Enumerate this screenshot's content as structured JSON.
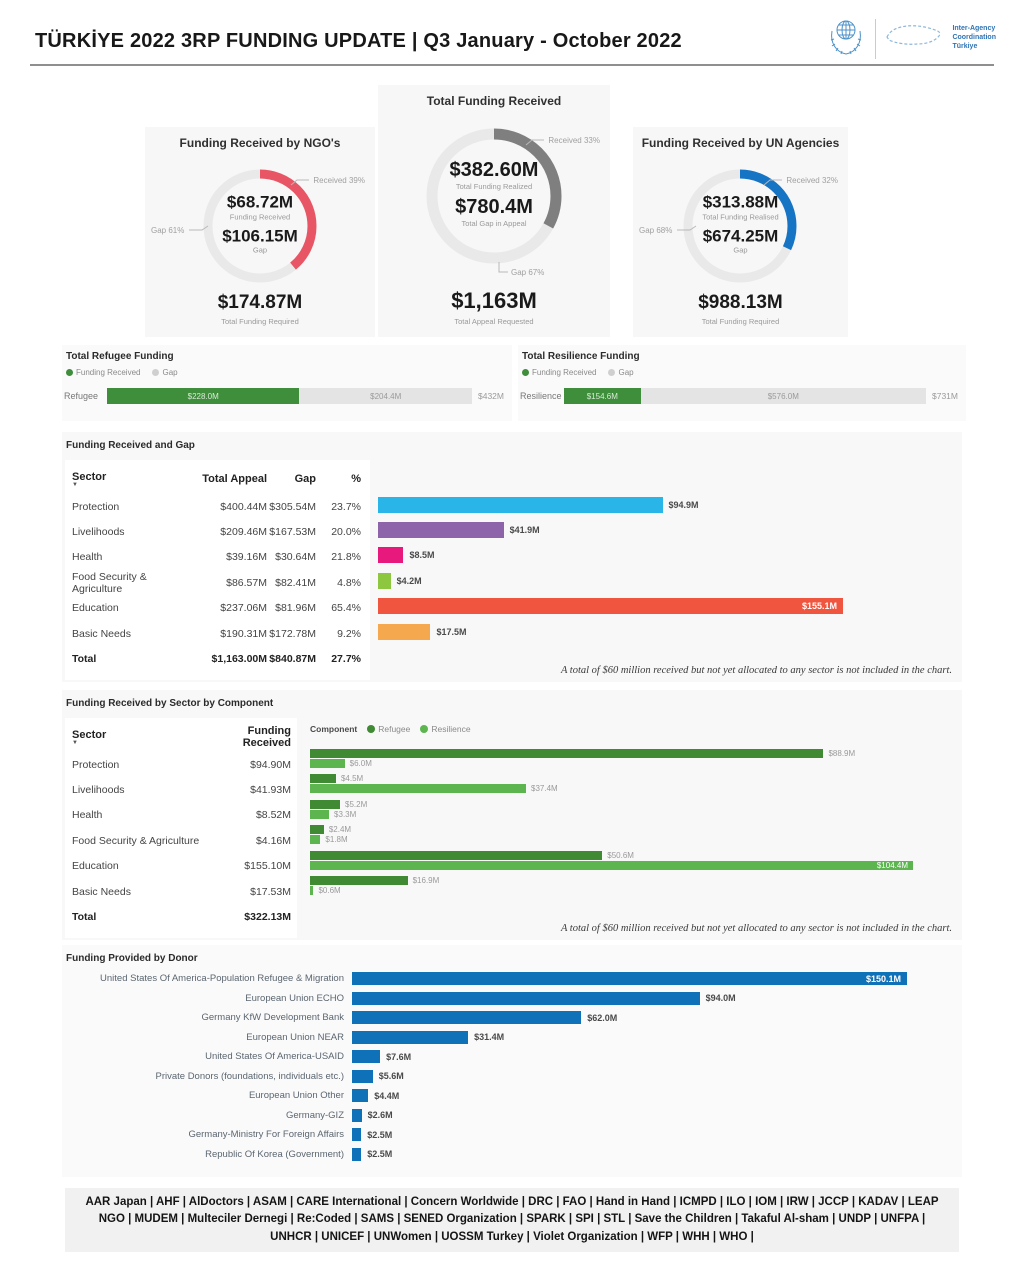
{
  "header": {
    "title": "TÜRKİYE 2022 3RP FUNDING UPDATE | Q3 January - October 2022",
    "logo_text_line1": "Inter-Agency",
    "logo_text_line2": "Coordination",
    "logo_text_line3": "Türkiye"
  },
  "summary_cards": [
    {
      "title": "Funding Received by NGO's",
      "received_callout": "Received 39%",
      "gap_callout": "Gap 61%",
      "received_pct": 39,
      "arc_color": "#E85565",
      "center": {
        "value1": "$68.72M",
        "label1": "Funding Received",
        "value2": "$106.15M",
        "label2": "Gap"
      },
      "footer": {
        "value": "$174.87M",
        "label": "Total Funding Required"
      }
    },
    {
      "title": "Total Funding Received",
      "received_callout": "Received 33%",
      "gap_callout": "Gap 67%",
      "received_pct": 33,
      "arc_color": "#7F7F7F",
      "center": {
        "value1": "$382.60M",
        "label1": "Total Funding Realized",
        "value2": "$780.4M",
        "label2": "Total Gap in Appeal"
      },
      "footer": {
        "value": "$1,163M",
        "label": "Total Appeal Requested"
      }
    },
    {
      "title": "Funding Received by UN Agencies",
      "received_callout": "Received 32%",
      "gap_callout": "Gap 68%",
      "received_pct": 32,
      "arc_color": "#1674C5",
      "center": {
        "value1": "$313.88M",
        "label1": "Total Funding Realised",
        "value2": "$674.25M",
        "label2": "Gap"
      },
      "footer": {
        "value": "$988.13M",
        "label": "Total Funding Required"
      }
    }
  ],
  "component_bars": [
    {
      "title": "Total Refugee Funding",
      "legend": [
        "Funding Received",
        "Gap"
      ],
      "row_label": "Refugee",
      "received": 228.0,
      "received_label": "$228.0M",
      "gap": 204.4,
      "gap_label": "$204.4M",
      "total_label": "$432M"
    },
    {
      "title": "Total Resilience Funding",
      "legend": [
        "Funding Received",
        "Gap"
      ],
      "row_label": "Resilience",
      "received": 154.6,
      "received_label": "$154.6M",
      "gap": 576.0,
      "gap_label": "$576.0M",
      "total_label": "$731M"
    }
  ],
  "funding_gap": {
    "title": "Funding Received and Gap",
    "columns": [
      "Sector",
      "Total Appeal",
      "Gap",
      "%"
    ],
    "rows": [
      {
        "sector": "Protection",
        "total_appeal": "$400.44M",
        "gap": "$305.54M",
        "pct": "23.7%",
        "received": 94.9,
        "received_label": "$94.9M",
        "color": "#29B5E8"
      },
      {
        "sector": "Livelihoods",
        "total_appeal": "$209.46M",
        "gap": "$167.53M",
        "pct": "20.0%",
        "received": 41.9,
        "received_label": "$41.9M",
        "color": "#8D64A9"
      },
      {
        "sector": "Health",
        "total_appeal": "$39.16M",
        "gap": "$30.64M",
        "pct": "21.8%",
        "received": 8.5,
        "received_label": "$8.5M",
        "color": "#E8197D"
      },
      {
        "sector": "Food Security & Agriculture",
        "total_appeal": "$86.57M",
        "gap": "$82.41M",
        "pct": "4.8%",
        "received": 4.2,
        "received_label": "$4.2M",
        "color": "#8DC63F"
      },
      {
        "sector": "Education",
        "total_appeal": "$237.06M",
        "gap": "$81.96M",
        "pct": "65.4%",
        "received": 155.1,
        "received_label": "$155.1M",
        "color": "#F0563F"
      },
      {
        "sector": "Basic Needs",
        "total_appeal": "$190.31M",
        "gap": "$172.78M",
        "pct": "9.2%",
        "received": 17.5,
        "received_label": "$17.5M",
        "color": "#F5A84E"
      }
    ],
    "total_row": {
      "sector": "Total",
      "total_appeal": "$1,163.00M",
      "gap": "$840.87M",
      "pct": "27.7%"
    },
    "note": "A total of $60 million received but not yet allocated to any sector is not included in the chart."
  },
  "sector_component": {
    "title": "Funding Received by Sector by Component",
    "columns": [
      "Sector",
      "Funding Received"
    ],
    "legend_title": "Component",
    "legend": [
      {
        "label": "Refugee",
        "color": "#3F8A33"
      },
      {
        "label": "Resilience",
        "color": "#5CB54F"
      }
    ],
    "rows": [
      {
        "sector": "Protection",
        "funding_received": "$94.90M",
        "refugee": 88.9,
        "refugee_label": "$88.9M",
        "resilience": 6.0,
        "resilience_label": "$6.0M"
      },
      {
        "sector": "Livelihoods",
        "funding_received": "$41.93M",
        "refugee": 4.5,
        "refugee_label": "$4.5M",
        "resilience": 37.4,
        "resilience_label": "$37.4M"
      },
      {
        "sector": "Health",
        "funding_received": "$8.52M",
        "refugee": 5.2,
        "refugee_label": "$5.2M",
        "resilience": 3.3,
        "resilience_label": "$3.3M"
      },
      {
        "sector": "Food Security & Agriculture",
        "funding_received": "$4.16M",
        "refugee": 2.4,
        "refugee_label": "$2.4M",
        "resilience": 1.8,
        "resilience_label": "$1.8M"
      },
      {
        "sector": "Education",
        "funding_received": "$155.10M",
        "refugee": 50.6,
        "refugee_label": "$50.6M",
        "resilience": 104.4,
        "resilience_label": "$104.4M"
      },
      {
        "sector": "Basic Needs",
        "funding_received": "$17.53M",
        "refugee": 16.9,
        "refugee_label": "$16.9M",
        "resilience": 0.6,
        "resilience_label": "$0.6M"
      }
    ],
    "total_row": {
      "sector": "Total",
      "funding_received": "$322.13M"
    },
    "note": "A total of $60 million received but not yet allocated to any sector is not included in the chart."
  },
  "donors": {
    "title": "Funding Provided by Donor",
    "bar_color": "#0F72B8",
    "rows": [
      {
        "label": "United States Of America-Population Refugee & Migration",
        "value": 150.1,
        "value_label": "$150.1M"
      },
      {
        "label": "European Union ECHO",
        "value": 94.0,
        "value_label": "$94.0M"
      },
      {
        "label": "Germany KfW Development Bank",
        "value": 62.0,
        "value_label": "$62.0M"
      },
      {
        "label": "European Union NEAR",
        "value": 31.4,
        "value_label": "$31.4M"
      },
      {
        "label": "United States Of America-USAID",
        "value": 7.6,
        "value_label": "$7.6M"
      },
      {
        "label": "Private Donors (foundations, individuals etc.)",
        "value": 5.6,
        "value_label": "$5.6M"
      },
      {
        "label": "European Union Other",
        "value": 4.4,
        "value_label": "$4.4M"
      },
      {
        "label": "Germany-GIZ",
        "value": 2.6,
        "value_label": "$2.6M"
      },
      {
        "label": "Germany-Ministry For Foreign Affairs",
        "value": 2.5,
        "value_label": "$2.5M"
      },
      {
        "label": "Republic Of Korea (Government)",
        "value": 2.5,
        "value_label": "$2.5M"
      }
    ]
  },
  "footer": {
    "partners": "AAR Japan | AHF | AlDoctors | ASAM | CARE International | Concern Worldwide | DRC | FAO | Hand in Hand | ICMPD | ILO | IOM | IRW | JCCP | KADAV | LEAP NGO | MUDEM | Multeciler Dernegi | Re:Coded | SAMS | SENED Organization | SPARK | SPI | STL | Save the Children | Takaful Al-sham | UNDP | UNFPA | UNHCR | UNICEF | UNWomen | UOSSM Turkey | Violet Organization | WFP | WHH | WHO |"
  },
  "chart_data": [
    {
      "type": "pie",
      "title": "Funding Received by NGO's",
      "labels": [
        "Funding Received",
        "Gap"
      ],
      "values": [
        68.72,
        106.15
      ],
      "unit": "USD millions",
      "received_pct": 39,
      "gap_pct": 61,
      "total_funding_required": 174.87
    },
    {
      "type": "pie",
      "title": "Total Funding Received",
      "labels": [
        "Total Funding Realized",
        "Total Gap in Appeal"
      ],
      "values": [
        382.6,
        780.4
      ],
      "unit": "USD millions",
      "received_pct": 33,
      "gap_pct": 67,
      "total_appeal_requested": 1163
    },
    {
      "type": "pie",
      "title": "Funding Received by UN Agencies",
      "labels": [
        "Total Funding Realised",
        "Gap"
      ],
      "values": [
        313.88,
        674.25
      ],
      "unit": "USD millions",
      "received_pct": 32,
      "gap_pct": 68,
      "total_funding_required": 988.13
    },
    {
      "type": "bar",
      "title": "Total Refugee Funding",
      "orientation": "horizontal",
      "stacked": true,
      "categories": [
        "Refugee"
      ],
      "series": [
        {
          "name": "Funding Received",
          "values": [
            228.0
          ]
        },
        {
          "name": "Gap",
          "values": [
            204.4
          ]
        }
      ],
      "total": 432,
      "unit": "USD millions"
    },
    {
      "type": "bar",
      "title": "Total Resilience Funding",
      "orientation": "horizontal",
      "stacked": true,
      "categories": [
        "Resilience"
      ],
      "series": [
        {
          "name": "Funding Received",
          "values": [
            154.6
          ]
        },
        {
          "name": "Gap",
          "values": [
            576.0
          ]
        }
      ],
      "total": 731,
      "unit": "USD millions"
    },
    {
      "type": "bar",
      "title": "Funding Received and Gap",
      "orientation": "horizontal",
      "categories": [
        "Protection",
        "Livelihoods",
        "Health",
        "Food Security & Agriculture",
        "Education",
        "Basic Needs"
      ],
      "values": [
        94.9,
        41.9,
        8.5,
        4.2,
        155.1,
        17.5
      ],
      "total_appeal": [
        400.44,
        209.46,
        39.16,
        86.57,
        237.06,
        190.31
      ],
      "gap": [
        305.54,
        167.53,
        30.64,
        82.41,
        81.96,
        172.78
      ],
      "pct_received": [
        23.7,
        20.0,
        21.8,
        4.8,
        65.4,
        9.2
      ],
      "unit": "USD millions"
    },
    {
      "type": "bar",
      "title": "Funding Received by Sector by Component",
      "orientation": "horizontal",
      "categories": [
        "Protection",
        "Livelihoods",
        "Health",
        "Food Security & Agriculture",
        "Education",
        "Basic Needs"
      ],
      "series": [
        {
          "name": "Refugee",
          "values": [
            88.9,
            4.5,
            5.2,
            2.4,
            50.6,
            16.9
          ]
        },
        {
          "name": "Resilience",
          "values": [
            6.0,
            37.4,
            3.3,
            1.8,
            104.4,
            0.6
          ]
        }
      ],
      "total_received": 322.13,
      "unit": "USD millions"
    },
    {
      "type": "bar",
      "title": "Funding Provided by Donor",
      "orientation": "horizontal",
      "categories": [
        "United States Of America-Population Refugee & Migration",
        "European Union ECHO",
        "Germany KfW Development Bank",
        "European Union NEAR",
        "United States Of America-USAID",
        "Private Donors (foundations, individuals etc.)",
        "European Union Other",
        "Germany-GIZ",
        "Germany-Ministry For Foreign Affairs",
        "Republic Of Korea (Government)"
      ],
      "values": [
        150.1,
        94.0,
        62.0,
        31.4,
        7.6,
        5.6,
        4.4,
        2.6,
        2.5,
        2.5
      ],
      "unit": "USD millions"
    }
  ]
}
